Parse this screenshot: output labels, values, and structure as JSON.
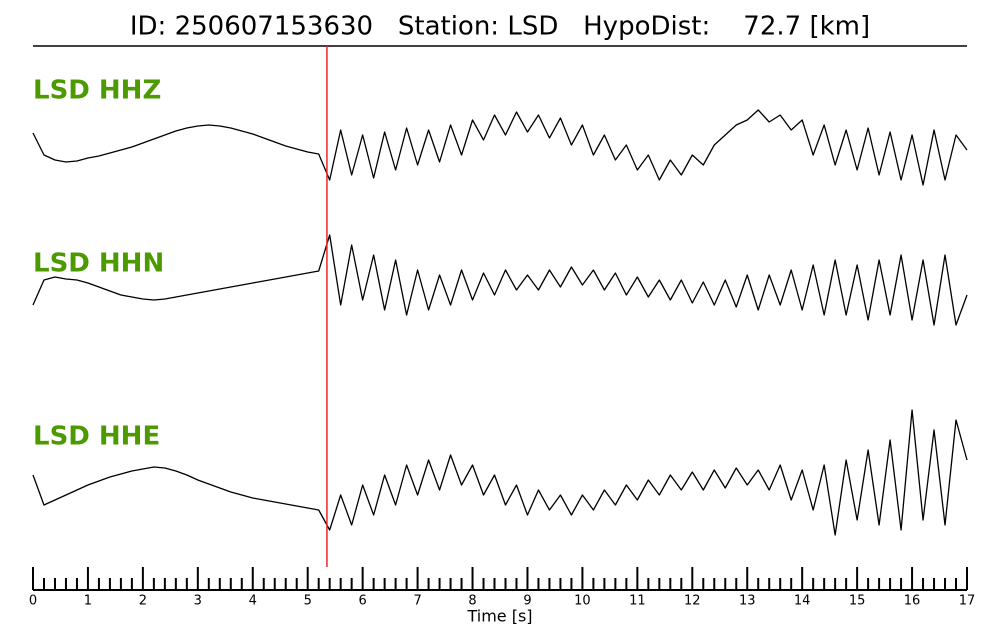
{
  "chart_data": {
    "type": "seismogram",
    "title": "ID: 250607153630   Station: LSD   HypoDist:    72.7 [km]",
    "x_label": "Time [s]",
    "xlim": [
      0,
      17
    ],
    "xticks": [
      0,
      1,
      2,
      3,
      4,
      5,
      6,
      7,
      8,
      9,
      10,
      11,
      12,
      13,
      14,
      15,
      16,
      17
    ],
    "minor_ticks_per_major": 5,
    "pick_time": 5.35,
    "pick_color": "#e8262b",
    "label_color": "#4c9a00",
    "x": [
      0,
      0.2,
      0.4,
      0.6,
      0.8,
      1,
      1.2,
      1.4,
      1.6,
      1.8,
      2,
      2.2,
      2.4,
      2.6,
      2.8,
      3,
      3.2,
      3.4,
      3.6,
      3.8,
      4,
      4.2,
      4.4,
      4.6,
      4.8,
      5,
      5.2,
      5.4,
      5.6,
      5.8,
      6,
      6.2,
      6.4,
      6.6,
      6.8,
      7,
      7.2,
      7.4,
      7.6,
      7.8,
      8,
      8.2,
      8.4,
      8.6,
      8.8,
      9,
      9.2,
      9.4,
      9.6,
      9.8,
      10,
      10.2,
      10.4,
      10.6,
      10.8,
      11,
      11.2,
      11.4,
      11.6,
      11.8,
      12,
      12.2,
      12.4,
      12.6,
      12.8,
      13,
      13.2,
      13.4,
      13.6,
      13.8,
      14,
      14.2,
      14.4,
      14.6,
      14.8,
      15,
      15.2,
      15.4,
      15.6,
      15.8,
      16,
      16.2,
      16.4,
      16.6,
      16.8,
      17
    ],
    "series": [
      {
        "name": "LSD HHZ",
        "color": "#000000",
        "values": [
          17,
          -5,
          -10,
          -12,
          -11,
          -8,
          -6,
          -3,
          0,
          3,
          7,
          11,
          15,
          19,
          22,
          24,
          25,
          24,
          22,
          19,
          16,
          12,
          8,
          4,
          1,
          -2,
          -4,
          -30,
          20,
          -25,
          15,
          -28,
          18,
          -20,
          22,
          -15,
          20,
          -12,
          25,
          -5,
          30,
          10,
          35,
          15,
          38,
          18,
          35,
          12,
          32,
          5,
          25,
          -5,
          15,
          -10,
          5,
          -20,
          -5,
          -30,
          -10,
          -25,
          -5,
          -15,
          5,
          15,
          25,
          30,
          40,
          28,
          35,
          20,
          30,
          -5,
          25,
          -15,
          20,
          -20,
          22,
          -25,
          18,
          -30,
          15,
          -35,
          20,
          -30,
          15,
          0
        ]
      },
      {
        "name": "LSD HHN",
        "color": "#000000",
        "values": [
          -20,
          5,
          8,
          6,
          5,
          2,
          -2,
          -6,
          -10,
          -12,
          -14,
          -15,
          -14,
          -12,
          -10,
          -8,
          -6,
          -4,
          -2,
          0,
          2,
          4,
          6,
          8,
          10,
          12,
          14,
          50,
          -20,
          40,
          -15,
          30,
          -25,
          25,
          -30,
          15,
          -25,
          10,
          -20,
          15,
          -15,
          12,
          -10,
          15,
          -5,
          10,
          -5,
          15,
          -2,
          18,
          0,
          15,
          -5,
          12,
          -10,
          8,
          -12,
          5,
          -15,
          5,
          -18,
          3,
          -20,
          5,
          -22,
          10,
          -25,
          10,
          -20,
          15,
          -25,
          20,
          -30,
          25,
          -30,
          20,
          -35,
          25,
          -30,
          30,
          -35,
          25,
          -40,
          30,
          -40,
          -10
        ]
      },
      {
        "name": "LSD HHE",
        "color": "#000000",
        "values": [
          15,
          -15,
          -10,
          -5,
          0,
          5,
          9,
          13,
          16,
          19,
          21,
          23,
          22,
          19,
          15,
          10,
          6,
          2,
          -2,
          -5,
          -8,
          -10,
          -12,
          -14,
          -16,
          -18,
          -20,
          -40,
          -5,
          -35,
          5,
          -25,
          15,
          -15,
          25,
          -5,
          30,
          0,
          35,
          5,
          25,
          -5,
          15,
          -15,
          5,
          -25,
          0,
          -20,
          -5,
          -25,
          -5,
          -20,
          0,
          -15,
          5,
          -10,
          10,
          -5,
          15,
          0,
          18,
          0,
          20,
          2,
          22,
          5,
          20,
          0,
          25,
          -10,
          20,
          -20,
          25,
          -45,
          30,
          -30,
          40,
          -35,
          50,
          -40,
          80,
          -30,
          60,
          -35,
          70,
          30
        ]
      }
    ]
  }
}
